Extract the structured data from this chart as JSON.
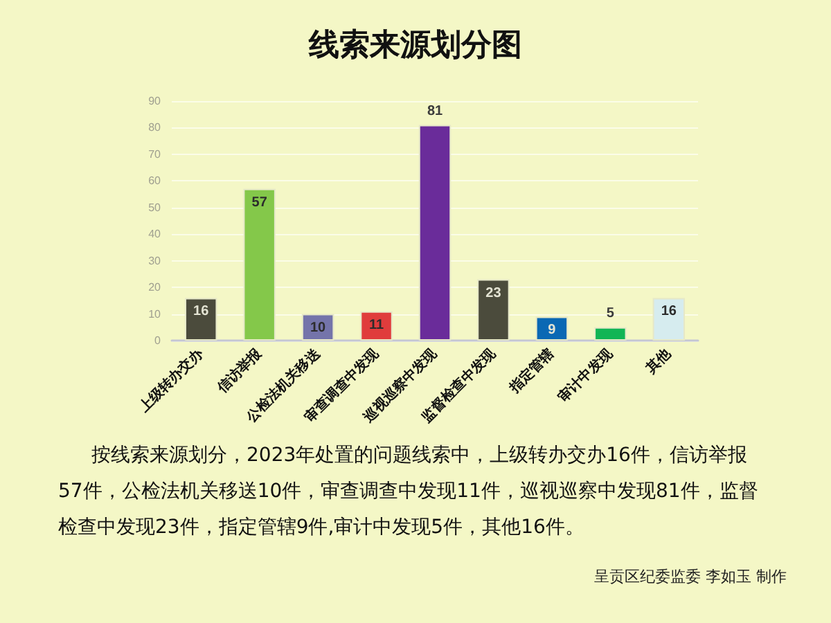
{
  "chart_data": {
    "type": "bar",
    "title": "线索来源划分图",
    "categories": [
      "上级转办交办",
      "信访举报",
      "公检法机关移送",
      "审查调查中发现",
      "巡视巡察中发现",
      "监督检查中发现",
      "指定管辖",
      "审计中发现",
      "其他"
    ],
    "values": [
      16,
      57,
      10,
      11,
      81,
      23,
      9,
      5,
      16
    ],
    "colors": [
      "#4b4b3c",
      "#84c84a",
      "#7474aa",
      "#e03c3c",
      "#6a2c9a",
      "#4b4b3c",
      "#0a68b4",
      "#12b555",
      "#d6ecef"
    ],
    "ylim": [
      0,
      90
    ],
    "yticks": [
      0,
      10,
      20,
      30,
      40,
      50,
      60,
      70,
      80,
      90
    ],
    "grid": "y",
    "data_labels": true,
    "annotations": [
      "按线索来源划分，2023年处置的问题线索中，上级转办交办16件，信访举报57件，公检法机关移送10件，审查调查中发现11件，巡视巡察中发现81件，监督检查中发现23件，指定管辖9件,审计中发现5件，其他16件。",
      "呈贡区纪委监委 李如玉 制作"
    ]
  }
}
